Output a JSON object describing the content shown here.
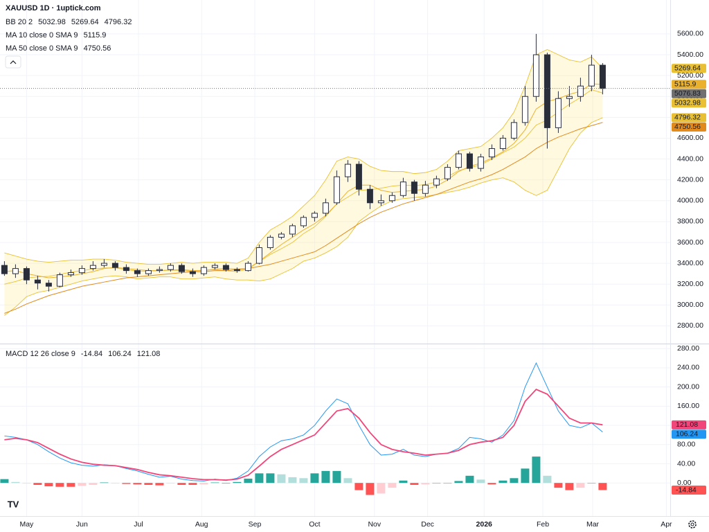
{
  "chart_data": [
    {
      "type": "candlestick",
      "title": "XAUUSD 1D · 1uptick.com",
      "grid": true,
      "up_color": "#ffffff",
      "down_color": "#2a2e39",
      "outline_color": "#2a2e39",
      "ylim": [
        2630,
        5925
      ],
      "yticks": [
        {
          "value": 2800,
          "label": "2800.00"
        },
        {
          "value": 3000,
          "label": "3000.00"
        },
        {
          "value": 3200,
          "label": "3200.00"
        },
        {
          "value": 3400,
          "label": "3400.00"
        },
        {
          "value": 3600,
          "label": "3600.00"
        },
        {
          "value": 3800,
          "label": "3800.00"
        },
        {
          "value": 4000,
          "label": "4000.00"
        },
        {
          "value": 4200,
          "label": "4200.00"
        },
        {
          "value": 4400,
          "label": "4400.00"
        },
        {
          "value": 4600,
          "label": "4600.00"
        },
        {
          "value": 4800,
          "label": "4800.00"
        },
        {
          "value": 5000,
          "label": "5000.00"
        },
        {
          "value": 5200,
          "label": "5200.00"
        },
        {
          "value": 5400,
          "label": "5400.00"
        },
        {
          "value": 5600,
          "label": "5600.00"
        }
      ],
      "xticks": [
        {
          "value": 2,
          "label": "May"
        },
        {
          "value": 7,
          "label": "Jun"
        },
        {
          "value": 12.1,
          "label": "Jul"
        },
        {
          "value": 17.8,
          "label": "Aug"
        },
        {
          "value": 22.6,
          "label": "Sep"
        },
        {
          "value": 28,
          "label": "Oct"
        },
        {
          "value": 33.4,
          "label": "Nov"
        },
        {
          "value": 38.2,
          "label": "Dec"
        },
        {
          "value": 43.3,
          "label": "2026"
        },
        {
          "value": 48.6,
          "label": "Feb"
        },
        {
          "value": 53.1,
          "label": "Mar"
        },
        {
          "value": 59.75,
          "label": "Apr"
        }
      ],
      "xlim": [
        -0.4,
        60.1
      ],
      "open": [
        3380,
        3300,
        3350,
        3240,
        3210,
        3180,
        3290,
        3310,
        3350,
        3380,
        3400,
        3360,
        3330,
        3300,
        3330,
        3340,
        3380,
        3320,
        3300,
        3360,
        3380,
        3340,
        3330,
        3400,
        3550,
        3650,
        3680,
        3760,
        3840,
        3880,
        3980,
        4230,
        4350,
        4110,
        3980,
        4000,
        4050,
        4180,
        4070,
        4150,
        4210,
        4320,
        4450,
        4310,
        4420,
        4500,
        4600,
        4750,
        5000,
        5400,
        4700,
        4980,
        5000,
        5100,
        5300
      ],
      "high": [
        3420,
        3390,
        3370,
        3280,
        3240,
        3310,
        3340,
        3380,
        3420,
        3440,
        3420,
        3390,
        3350,
        3350,
        3370,
        3400,
        3400,
        3350,
        3380,
        3400,
        3400,
        3360,
        3420,
        3580,
        3670,
        3700,
        3780,
        3860,
        3900,
        4020,
        4290,
        4390,
        4380,
        4150,
        4060,
        4080,
        4220,
        4200,
        4190,
        4240,
        4350,
        4480,
        4470,
        4450,
        4540,
        4630,
        4780,
        5100,
        5600,
        5420,
        5050,
        5100,
        5180,
        5400,
        5320
      ],
      "low": [
        3280,
        3260,
        3200,
        3150,
        3130,
        3170,
        3270,
        3290,
        3330,
        3360,
        3330,
        3300,
        3270,
        3280,
        3310,
        3320,
        3300,
        3270,
        3280,
        3340,
        3320,
        3310,
        3320,
        3390,
        3530,
        3630,
        3650,
        3740,
        3800,
        3850,
        3960,
        4180,
        4050,
        3920,
        3950,
        3980,
        4030,
        4000,
        4040,
        4120,
        4190,
        4300,
        4280,
        4280,
        4390,
        4480,
        4580,
        4720,
        4950,
        4500,
        4650,
        4900,
        4950,
        5050,
        5020
      ],
      "close": [
        3300,
        3350,
        3240,
        3210,
        3180,
        3290,
        3310,
        3350,
        3380,
        3400,
        3360,
        3330,
        3300,
        3330,
        3340,
        3380,
        3320,
        3300,
        3360,
        3380,
        3340,
        3330,
        3400,
        3550,
        3650,
        3680,
        3760,
        3840,
        3880,
        3980,
        4230,
        4350,
        4110,
        3980,
        4000,
        4050,
        4180,
        4070,
        4150,
        4210,
        4320,
        4450,
        4310,
        4420,
        4500,
        4600,
        4750,
        5000,
        5400,
        4700,
        4980,
        5000,
        5100,
        5300,
        5076.83
      ],
      "last_color": "#707070",
      "indicators": [
        {
          "name": "BB 20 2",
          "color": "#e9c033",
          "fill": "rgba(255,235,150,0.3)",
          "upper": [
            3500,
            3470,
            3440,
            3420,
            3410,
            3420,
            3430,
            3430,
            3440,
            3440,
            3430,
            3410,
            3400,
            3390,
            3390,
            3400,
            3410,
            3400,
            3410,
            3410,
            3410,
            3400,
            3450,
            3600,
            3720,
            3780,
            3850,
            3950,
            4050,
            4200,
            4380,
            4420,
            4400,
            4330,
            4290,
            4280,
            4280,
            4260,
            4270,
            4300,
            4380,
            4480,
            4500,
            4520,
            4600,
            4700,
            4850,
            5100,
            5400,
            5450,
            5400,
            5350,
            5330,
            5380,
            5269.64
          ],
          "basis": [
            3200,
            3225,
            3260,
            3270,
            3275,
            3295,
            3315,
            3330,
            3345,
            3355,
            3355,
            3340,
            3325,
            3325,
            3330,
            3335,
            3330,
            3325,
            3335,
            3340,
            3330,
            3320,
            3345,
            3415,
            3485,
            3540,
            3600,
            3685,
            3750,
            3850,
            3970,
            4035,
            4100,
            4105,
            4120,
            4140,
            4150,
            4145,
            4155,
            4180,
            4230,
            4290,
            4315,
            4345,
            4400,
            4460,
            4515,
            4600,
            4725,
            4775,
            4850,
            4925,
            4990,
            5065,
            5032.98
          ],
          "lower": [
            2900,
            2980,
            3080,
            3120,
            3140,
            3170,
            3200,
            3230,
            3250,
            3270,
            3280,
            3270,
            3250,
            3260,
            3270,
            3270,
            3250,
            3250,
            3260,
            3270,
            3250,
            3240,
            3240,
            3230,
            3250,
            3300,
            3350,
            3420,
            3450,
            3500,
            3560,
            3650,
            3800,
            3880,
            3950,
            4000,
            4020,
            4030,
            4040,
            4060,
            4080,
            4100,
            4130,
            4170,
            4200,
            4220,
            4180,
            4100,
            4050,
            4100,
            4300,
            4500,
            4650,
            4750,
            4796.32
          ]
        },
        {
          "name": "MA 10 close 0 SMA 9",
          "color": "#eab12e",
          "values": [
            3320,
            3330,
            3300,
            3280,
            3260,
            3270,
            3280,
            3300,
            3320,
            3350,
            3360,
            3350,
            3340,
            3330,
            3330,
            3335,
            3340,
            3330,
            3330,
            3345,
            3350,
            3345,
            3350,
            3420,
            3500,
            3580,
            3650,
            3720,
            3780,
            3860,
            3970,
            4090,
            4150,
            4150,
            4100,
            4080,
            4090,
            4100,
            4110,
            4140,
            4200,
            4280,
            4330,
            4360,
            4410,
            4470,
            4550,
            4680,
            4880,
            4950,
            4980,
            5020,
            5050,
            5120,
            5115.9
          ]
        },
        {
          "name": "MA 50 close 0 SMA 9",
          "color": "#e08a1e",
          "values": [
            2920,
            2960,
            3010,
            3050,
            3090,
            3120,
            3150,
            3180,
            3200,
            3220,
            3240,
            3260,
            3270,
            3280,
            3290,
            3300,
            3310,
            3320,
            3320,
            3330,
            3330,
            3340,
            3350,
            3370,
            3390,
            3420,
            3450,
            3480,
            3510,
            3570,
            3640,
            3710,
            3780,
            3840,
            3890,
            3930,
            3970,
            4000,
            4030,
            4060,
            4100,
            4140,
            4180,
            4210,
            4250,
            4300,
            4360,
            4420,
            4500,
            4560,
            4610,
            4650,
            4690,
            4720,
            4750.56
          ]
        }
      ]
    },
    {
      "type": "macd",
      "title": "MACD 12 26 close 9",
      "grid": true,
      "ylim": [
        -69,
        289
      ],
      "yticks": [
        {
          "value": 0,
          "label": "0.00"
        },
        {
          "value": 40,
          "label": "40.00"
        },
        {
          "value": 80,
          "label": "80.00"
        },
        {
          "value": 120,
          "label": "120.00"
        },
        {
          "value": 160,
          "label": "160.00"
        },
        {
          "value": 200,
          "label": "200.00"
        },
        {
          "value": 240,
          "label": "240.00"
        },
        {
          "value": 280,
          "label": "280.00"
        }
      ],
      "histogram": {
        "colors": [
          "#26a69a",
          "#b2dfdb",
          "#ff5252",
          "#ffcdd2"
        ],
        "values": [
          8,
          2,
          0,
          -4,
          -7,
          -8,
          -8,
          -6,
          -4,
          1,
          0,
          -2,
          -3,
          -4,
          -5,
          -1,
          -4,
          -4,
          -3,
          1,
          -1,
          2,
          9,
          20,
          20,
          18,
          12,
          10,
          20,
          25,
          25,
          10,
          -15,
          -25,
          -22,
          -10,
          5,
          -4,
          -3,
          0,
          0,
          4,
          15,
          7,
          -3,
          5,
          10,
          30,
          55,
          15,
          -10,
          -15,
          -10,
          0,
          -14.84
        ]
      },
      "macd": {
        "color": "#2196f3",
        "values": [
          98,
          95,
          90,
          80,
          65,
          52,
          42,
          37,
          35,
          38,
          36,
          30,
          25,
          18,
          12,
          14,
          8,
          5,
          4,
          8,
          5,
          10,
          25,
          55,
          75,
          88,
          92,
          100,
          120,
          150,
          175,
          165,
          120,
          80,
          58,
          60,
          70,
          58,
          55,
          60,
          62,
          72,
          95,
          92,
          85,
          100,
          130,
          200,
          250,
          200,
          150,
          120,
          115,
          125,
          106.24
        ]
      },
      "signal": {
        "color": "#f0467a",
        "values": [
          90,
          93,
          90,
          84,
          72,
          60,
          50,
          43,
          39,
          37,
          36,
          32,
          28,
          22,
          17,
          15,
          12,
          9,
          7,
          7,
          6,
          8,
          16,
          35,
          55,
          70,
          80,
          90,
          100,
          125,
          150,
          155,
          135,
          105,
          80,
          70,
          65,
          62,
          58,
          60,
          62,
          68,
          80,
          85,
          88,
          95,
          120,
          170,
          195,
          185,
          160,
          135,
          125,
          125,
          121.08
        ]
      }
    }
  ]
}
